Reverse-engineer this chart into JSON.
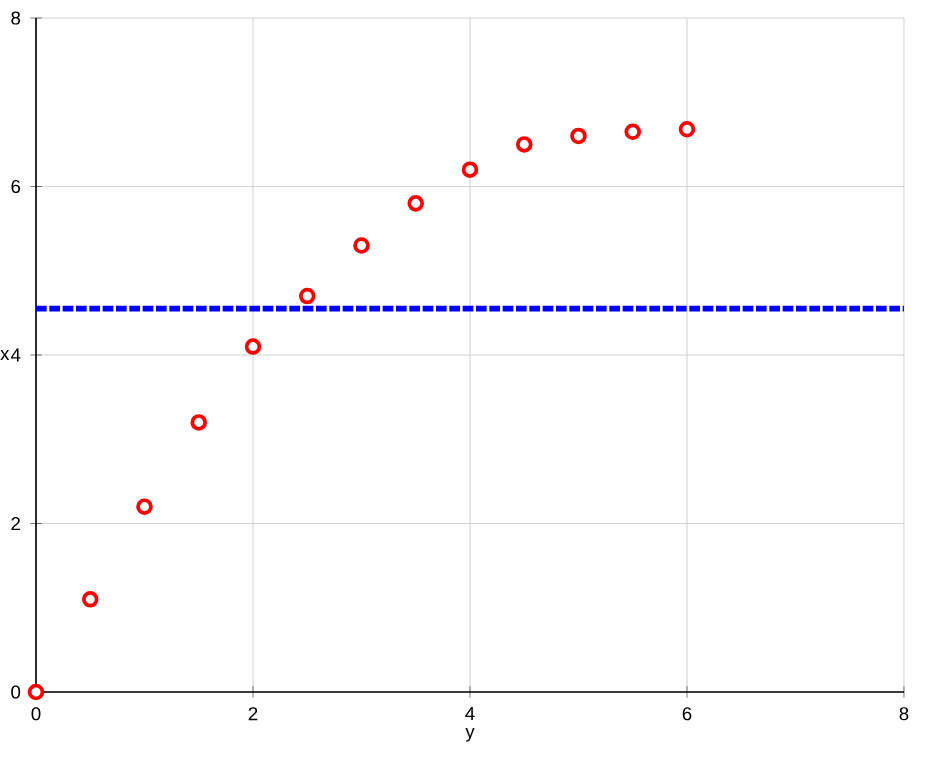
{
  "chart_data": {
    "type": "scatter",
    "xlabel": "y",
    "ylabel": "x",
    "x": [
      0,
      0.5,
      1,
      1.5,
      2,
      2.5,
      3,
      3.5,
      4,
      4.5,
      5,
      5.5,
      6
    ],
    "series": [
      {
        "color": "#ff0000",
        "values": [
          0,
          1.1,
          2.2,
          3.2,
          4.1,
          4.7,
          5.3,
          5.8,
          6.2,
          6.5,
          6.6,
          6.65,
          6.68
        ]
      }
    ],
    "xlim": [
      0,
      8
    ],
    "ylim": [
      0,
      8
    ],
    "xticks": [
      0,
      2,
      4,
      6,
      8
    ],
    "yticks": [
      0,
      2,
      4,
      6,
      8
    ],
    "grid": true,
    "marker": "circle",
    "ref_lines": [
      {
        "axis": "y",
        "value": 4.55,
        "color": "#0000ff",
        "line_style": "dashed"
      }
    ]
  }
}
